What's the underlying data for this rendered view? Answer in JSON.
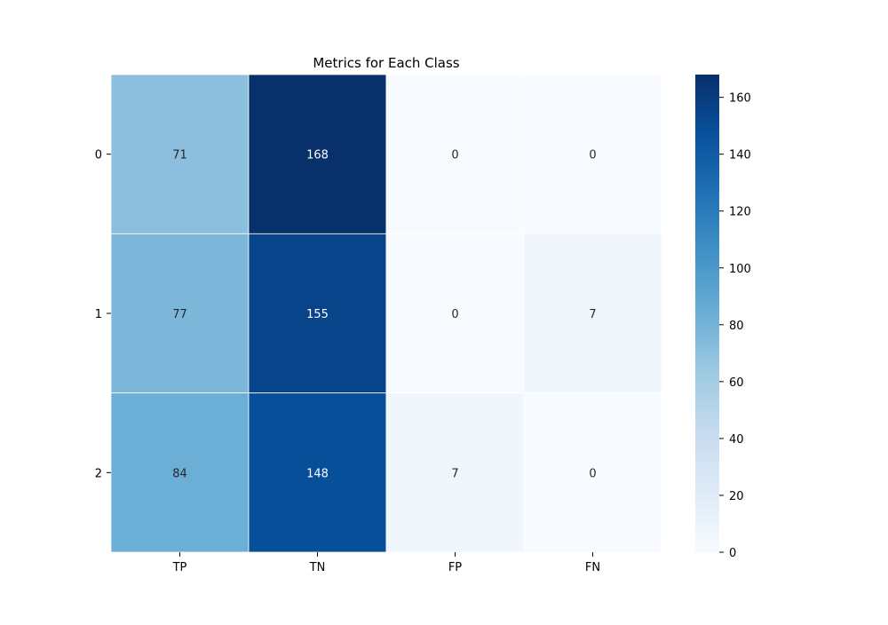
{
  "chart_data": {
    "type": "heatmap",
    "title": "Metrics for Each Class",
    "xlabel": "",
    "ylabel": "",
    "x_categories": [
      "TP",
      "TN",
      "FP",
      "FN"
    ],
    "y_categories": [
      "0",
      "1",
      "2"
    ],
    "values": [
      [
        71,
        168,
        0,
        0
      ],
      [
        77,
        155,
        0,
        7
      ],
      [
        84,
        148,
        7,
        0
      ]
    ],
    "colormap": "Blues",
    "colorbar": {
      "range": [
        0,
        168
      ],
      "ticks": [
        0,
        20,
        40,
        60,
        80,
        100,
        120,
        140,
        160
      ],
      "tick_labels": [
        "0",
        "20",
        "40",
        "60",
        "80",
        "100",
        "120",
        "140",
        "160"
      ]
    },
    "grid_line_color": "#ffffff",
    "annotation_colors": {
      "light_background": "#262626",
      "dark_background": "#ffffff"
    }
  }
}
